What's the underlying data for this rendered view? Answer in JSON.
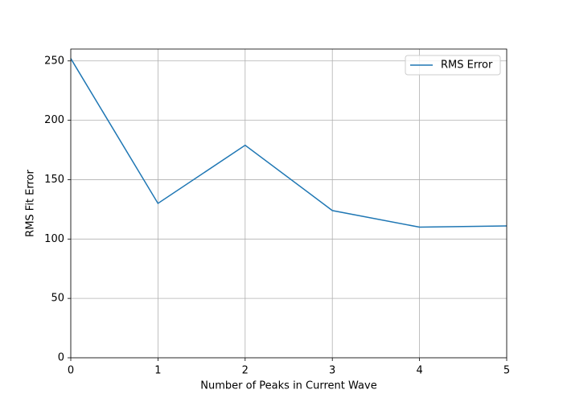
{
  "chart_data": {
    "type": "line",
    "x": [
      0,
      1,
      2,
      3,
      4,
      5
    ],
    "series": [
      {
        "name": "RMS Error",
        "color": "#1f77b4",
        "values": [
          252,
          130,
          179,
          124,
          110,
          111
        ]
      }
    ],
    "xlabel": "Number of Peaks in Current Wave",
    "ylabel": "RMS Fit Error",
    "xlim": [
      0,
      5
    ],
    "xticks": [
      0,
      1,
      2,
      3,
      4,
      5
    ],
    "ylim": [
      0,
      260
    ],
    "yticks": [
      0,
      50,
      100,
      150,
      200,
      250
    ],
    "grid": true,
    "legend": "upper-right"
  }
}
